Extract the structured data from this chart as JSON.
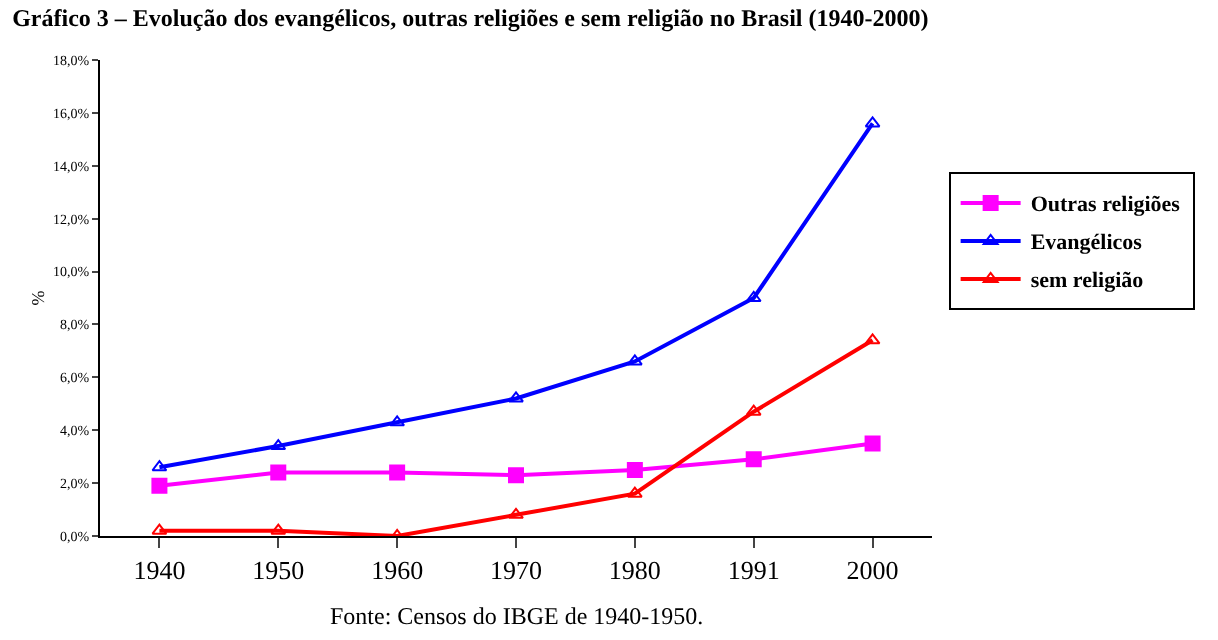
{
  "chart_data": {
    "type": "line",
    "title": "Gráfico 3 – Evolução dos evangélicos, outras religiões e sem religião no Brasil (1940-2000)",
    "ylabel": "%",
    "categories": [
      "1940",
      "1950",
      "1960",
      "1970",
      "1980",
      "1991",
      "2000"
    ],
    "series": [
      {
        "name": "Outras religiões",
        "color": "#ff00ff",
        "marker": "square",
        "values": [
          1.9,
          2.4,
          2.4,
          2.3,
          2.5,
          2.9,
          3.5
        ]
      },
      {
        "name": "Evangélicos",
        "color": "#0000ff",
        "marker": "triangle",
        "values": [
          2.6,
          3.4,
          4.3,
          5.2,
          6.6,
          9.0,
          15.6
        ]
      },
      {
        "name": "sem religião",
        "color": "#ff0000",
        "marker": "triangle",
        "values": [
          0.2,
          0.2,
          0.0,
          0.8,
          1.6,
          4.7,
          7.4
        ]
      }
    ],
    "ylim": [
      0,
      18
    ],
    "yticks": [
      {
        "value": 0,
        "label": "0,0%"
      },
      {
        "value": 2,
        "label": "2,0%"
      },
      {
        "value": 4,
        "label": "4,0%"
      },
      {
        "value": 6,
        "label": "6,0%"
      },
      {
        "value": 8,
        "label": "8,0%"
      },
      {
        "value": 10,
        "label": "10,0%"
      },
      {
        "value": 12,
        "label": "12,0%"
      },
      {
        "value": 14,
        "label": "14,0%"
      },
      {
        "value": 16,
        "label": "16,0%"
      },
      {
        "value": 18,
        "label": "18,0%"
      }
    ],
    "legend": "right",
    "annotations": [
      "Fonte: Censos do IBGE de 1940-1950."
    ]
  }
}
